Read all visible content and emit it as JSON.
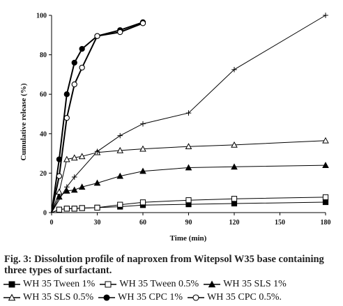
{
  "chart_data": {
    "type": "line",
    "xlabel": "Time (min)",
    "ylabel": "Cumulative release (%)",
    "xlim": [
      0,
      180
    ],
    "ylim": [
      0,
      100
    ],
    "x_ticks": [
      "0",
      "30",
      "60",
      "90",
      "120",
      "150",
      "180"
    ],
    "y_ticks": [
      "0",
      "20",
      "40",
      "60",
      "80",
      "100"
    ],
    "grid": false,
    "series": [
      {
        "name": "WH 35 Tween 1%",
        "marker": "filled-square",
        "x": [
          0,
          5,
          10,
          15,
          20,
          30,
          45,
          60,
          90,
          120,
          180
        ],
        "y": [
          0,
          1.5,
          2,
          2,
          2.3,
          2.5,
          3,
          3.8,
          4.2,
          4.6,
          5.3
        ]
      },
      {
        "name": "WH 35 Tween 0.5%",
        "marker": "open-square",
        "x": [
          0,
          5,
          10,
          15,
          20,
          30,
          45,
          60,
          90,
          120,
          180
        ],
        "y": [
          0,
          1.5,
          2,
          2,
          2.3,
          2.5,
          4,
          5.2,
          6.3,
          7,
          7.8
        ]
      },
      {
        "name": "WH 35 SLS 1%",
        "marker": "filled-triangle",
        "x": [
          0,
          5,
          10,
          15,
          20,
          30,
          45,
          60,
          90,
          120,
          180
        ],
        "y": [
          0,
          8,
          11,
          11.5,
          13,
          15,
          18.5,
          21,
          22.8,
          23.2,
          24
        ]
      },
      {
        "name": "WH 35 SLS 0.5%",
        "marker": "open-triangle",
        "x": [
          0,
          5,
          10,
          15,
          20,
          30,
          45,
          60,
          90,
          120,
          180
        ],
        "y": [
          0,
          10.5,
          27,
          27.8,
          28.5,
          30.5,
          31.5,
          32.3,
          33.5,
          34.3,
          36.5
        ]
      },
      {
        "name": "WH 35 CPC 1%",
        "marker": "filled-circle",
        "x": [
          0,
          5,
          10,
          15,
          20,
          30,
          45,
          60
        ],
        "y": [
          0,
          27,
          60,
          76,
          83,
          89.5,
          92.5,
          96.5
        ]
      },
      {
        "name": "WH 35 CPC 0.5%.",
        "marker": "open-circle",
        "x": [
          0,
          5,
          10,
          15,
          20,
          30,
          45,
          60
        ],
        "y": [
          0,
          18.5,
          48,
          65,
          73.5,
          89.5,
          91.5,
          96
        ]
      },
      {
        "name": "",
        "marker": "plus",
        "x": [
          0,
          10,
          15,
          30,
          45,
          60,
          90,
          120,
          180
        ],
        "y": [
          0,
          13,
          18,
          31,
          39,
          45,
          50.5,
          72.5,
          100
        ]
      }
    ]
  },
  "caption": {
    "text": "Fig. 3: Dissolution profile of naproxen from Witepsol W35 base containing three types of surfactant."
  },
  "legend": {
    "rows": [
      [
        {
          "label": "WH 35 Tween 1%",
          "marker": "filled-square"
        },
        {
          "label": "WH 35 Tween 0.5%",
          "marker": "open-square"
        },
        {
          "label": "WH 35 SLS 1%",
          "marker": "filled-triangle"
        }
      ],
      [
        {
          "label": "WH 35 SLS 0.5%",
          "marker": "open-triangle"
        },
        {
          "label": "WH 35 CPC 1%",
          "marker": "filled-circle"
        },
        {
          "label": "WH 35 CPC 0.5%.",
          "marker": "open-circle"
        }
      ]
    ]
  }
}
